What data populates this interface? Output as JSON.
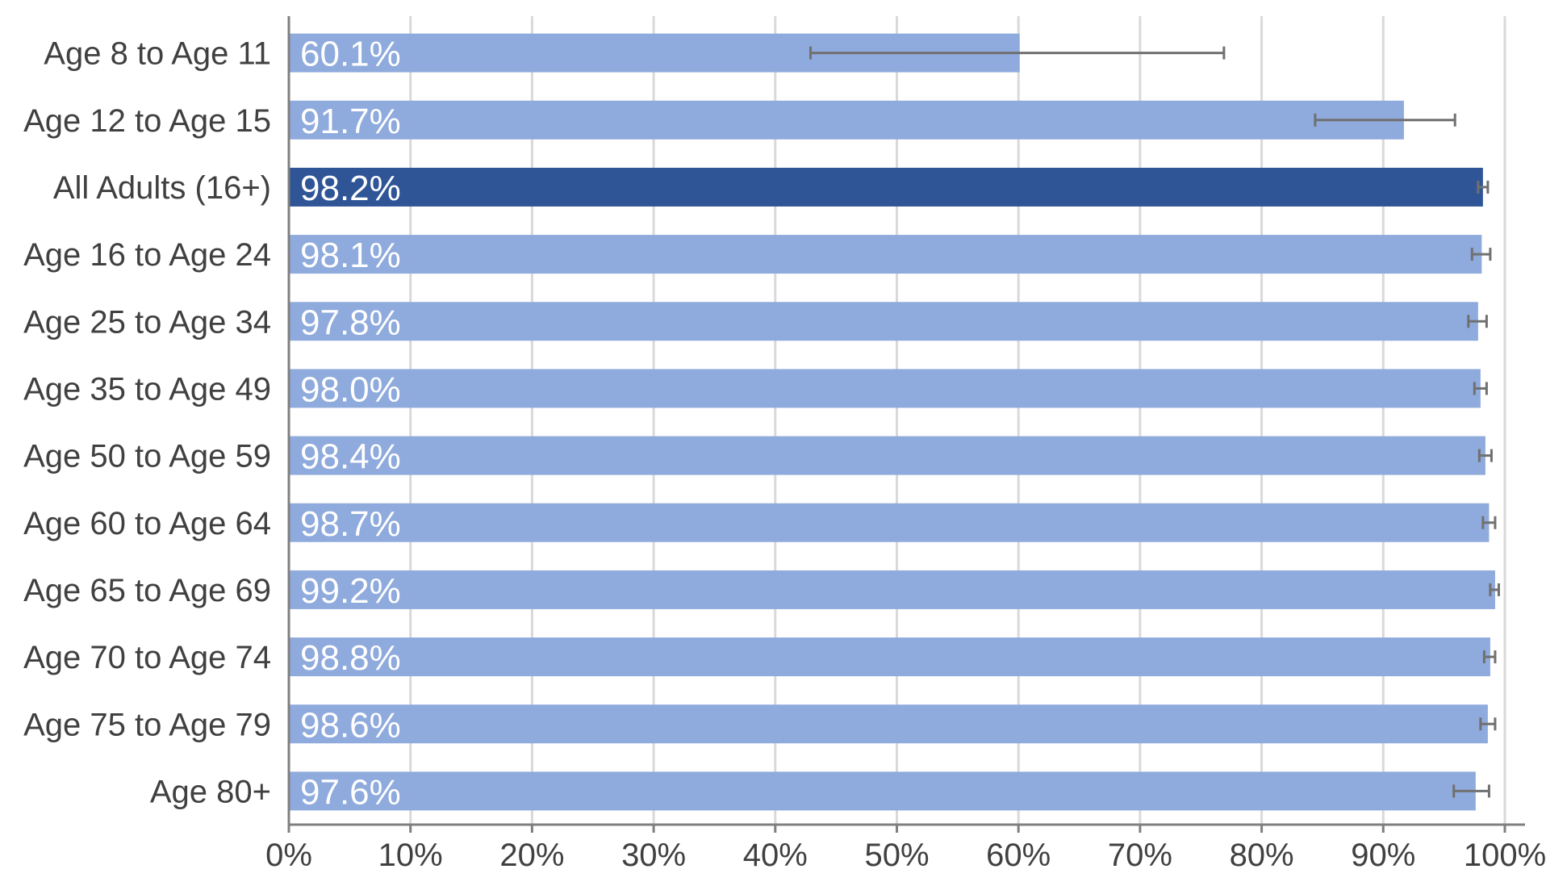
{
  "chart_data": {
    "type": "bar",
    "orientation": "horizontal",
    "title": "",
    "xlabel": "",
    "ylabel": "",
    "xlim": [
      0,
      100
    ],
    "x_ticks": [
      0,
      10,
      20,
      30,
      40,
      50,
      60,
      70,
      80,
      90,
      100
    ],
    "x_tick_labels": [
      "0%",
      "10%",
      "20%",
      "30%",
      "40%",
      "50%",
      "60%",
      "70%",
      "80%",
      "90%",
      "100%"
    ],
    "grid": "vertical",
    "legend": "none",
    "categories": [
      "Age 8 to Age 11",
      "Age 12 to Age 15",
      "All Adults (16+)",
      "Age 16 to Age 24",
      "Age 25 to Age 34",
      "Age 35 to Age 49",
      "Age 50 to Age 59",
      "Age 60 to Age 64",
      "Age 65 to Age 69",
      "Age 70 to Age 74",
      "Age 75 to Age 79",
      "Age 80+"
    ],
    "values": [
      60.1,
      91.7,
      98.2,
      98.1,
      97.8,
      98.0,
      98.4,
      98.7,
      99.2,
      98.8,
      98.6,
      97.6
    ],
    "value_labels": [
      "60.1%",
      "91.7%",
      "98.2%",
      "98.1%",
      "97.8%",
      "98.0%",
      "98.4%",
      "98.7%",
      "99.2%",
      "98.8%",
      "98.6%",
      "97.6%"
    ],
    "error_low": [
      42.9,
      84.4,
      97.8,
      97.3,
      97.0,
      97.5,
      97.9,
      98.2,
      98.8,
      98.3,
      98.0,
      95.8
    ],
    "error_high": [
      76.9,
      95.9,
      98.6,
      98.8,
      98.5,
      98.5,
      98.9,
      99.2,
      99.5,
      99.2,
      99.2,
      98.7
    ],
    "highlight_category": "All Adults (16+)",
    "colors": {
      "bar": "#8faadc",
      "highlight": "#2f5597",
      "error": "#707070",
      "grid": "#d9d9d9",
      "axis": "#7f7f7f",
      "label_text": "#ffffff",
      "tick_text": "#404040"
    }
  }
}
